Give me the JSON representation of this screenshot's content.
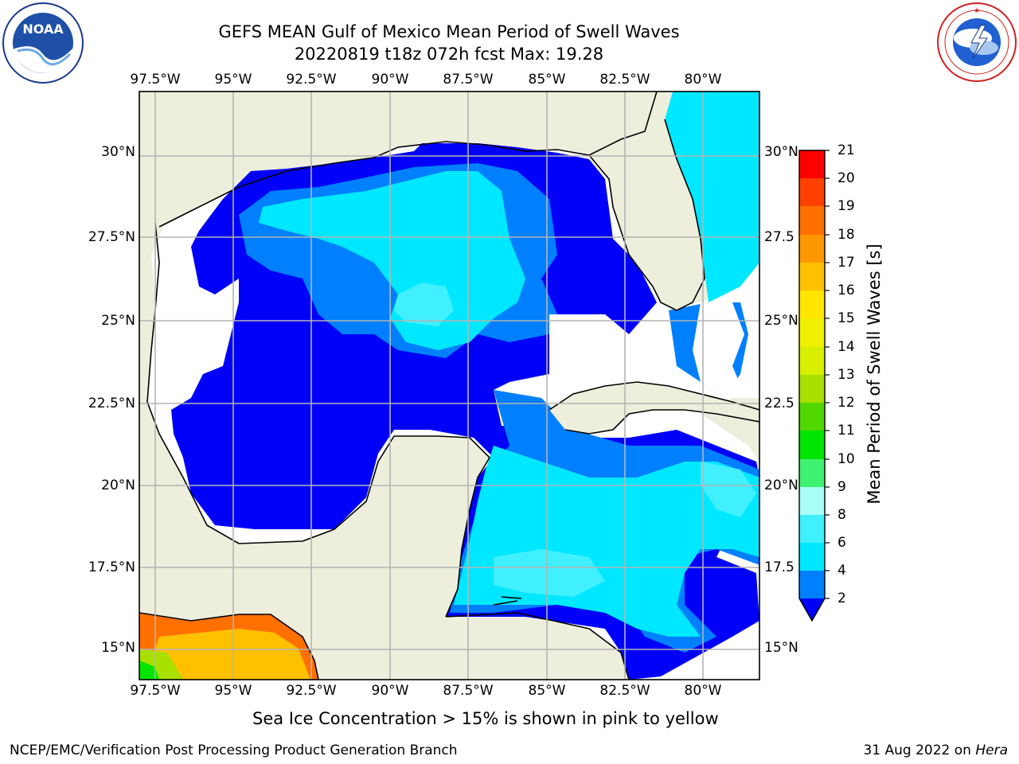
{
  "header": {
    "title_line1": "GEFS MEAN Gulf of Mexico Mean Period of Swell Waves",
    "title_line2": "20220819 t18z 072h fcst   Max: 19.28"
  },
  "logos": {
    "left": {
      "name": "noaa-logo",
      "text": "NOAA",
      "ring_text": "NATIONAL OCEANIC AND ATMOSPHERIC ADMINISTRATION · U.S. DEPARTMENT OF COMMERCE"
    },
    "right": {
      "name": "nws-logo",
      "ring_text": "NATIONAL WEATHER SERVICE"
    }
  },
  "map": {
    "lon_ticks": [
      "97.5°W",
      "95°W",
      "92.5°W",
      "90°W",
      "87.5°W",
      "85°W",
      "82.5°W",
      "80°W"
    ],
    "lat_ticks": [
      "30°N",
      "27.5°N",
      "25°N",
      "22.5°N",
      "20°N",
      "17.5°N",
      "15°N"
    ],
    "lat_ticks_right": [
      "30°N",
      "27.5",
      "25°N",
      "22.5",
      "20°N",
      "17.5",
      "15°N"
    ],
    "colors": {
      "land": "#eeeedd",
      "unshaded_sea": "#ffffff",
      "grid": "#b4b4b4",
      "coast": "#000000"
    }
  },
  "colorbar": {
    "label": "Mean Period of Swell Waves [s]",
    "ticks": [
      "2",
      "4",
      "6",
      "8",
      "9",
      "10",
      "11",
      "12",
      "13",
      "14",
      "15",
      "16",
      "17",
      "18",
      "19",
      "20",
      "21"
    ],
    "colors": [
      "#0000f8",
      "#0080ff",
      "#00e8ff",
      "#40f0ff",
      "#a8fff8",
      "#40f070",
      "#00e600",
      "#50d800",
      "#a8e000",
      "#d8f000",
      "#f0f000",
      "#ffe600",
      "#ffc000",
      "#ff9800",
      "#ff7000",
      "#ff4000",
      "#ff0000"
    ],
    "extend": "min"
  },
  "notes": {
    "ice": "Sea Ice Concentration > 15% is shown in pink to yellow"
  },
  "footer": {
    "left": "NCEP/EMC/Verification Post Processing Product Generation Branch",
    "right_prefix": "31 Aug 2022 on ",
    "right_machine": "Hera"
  }
}
